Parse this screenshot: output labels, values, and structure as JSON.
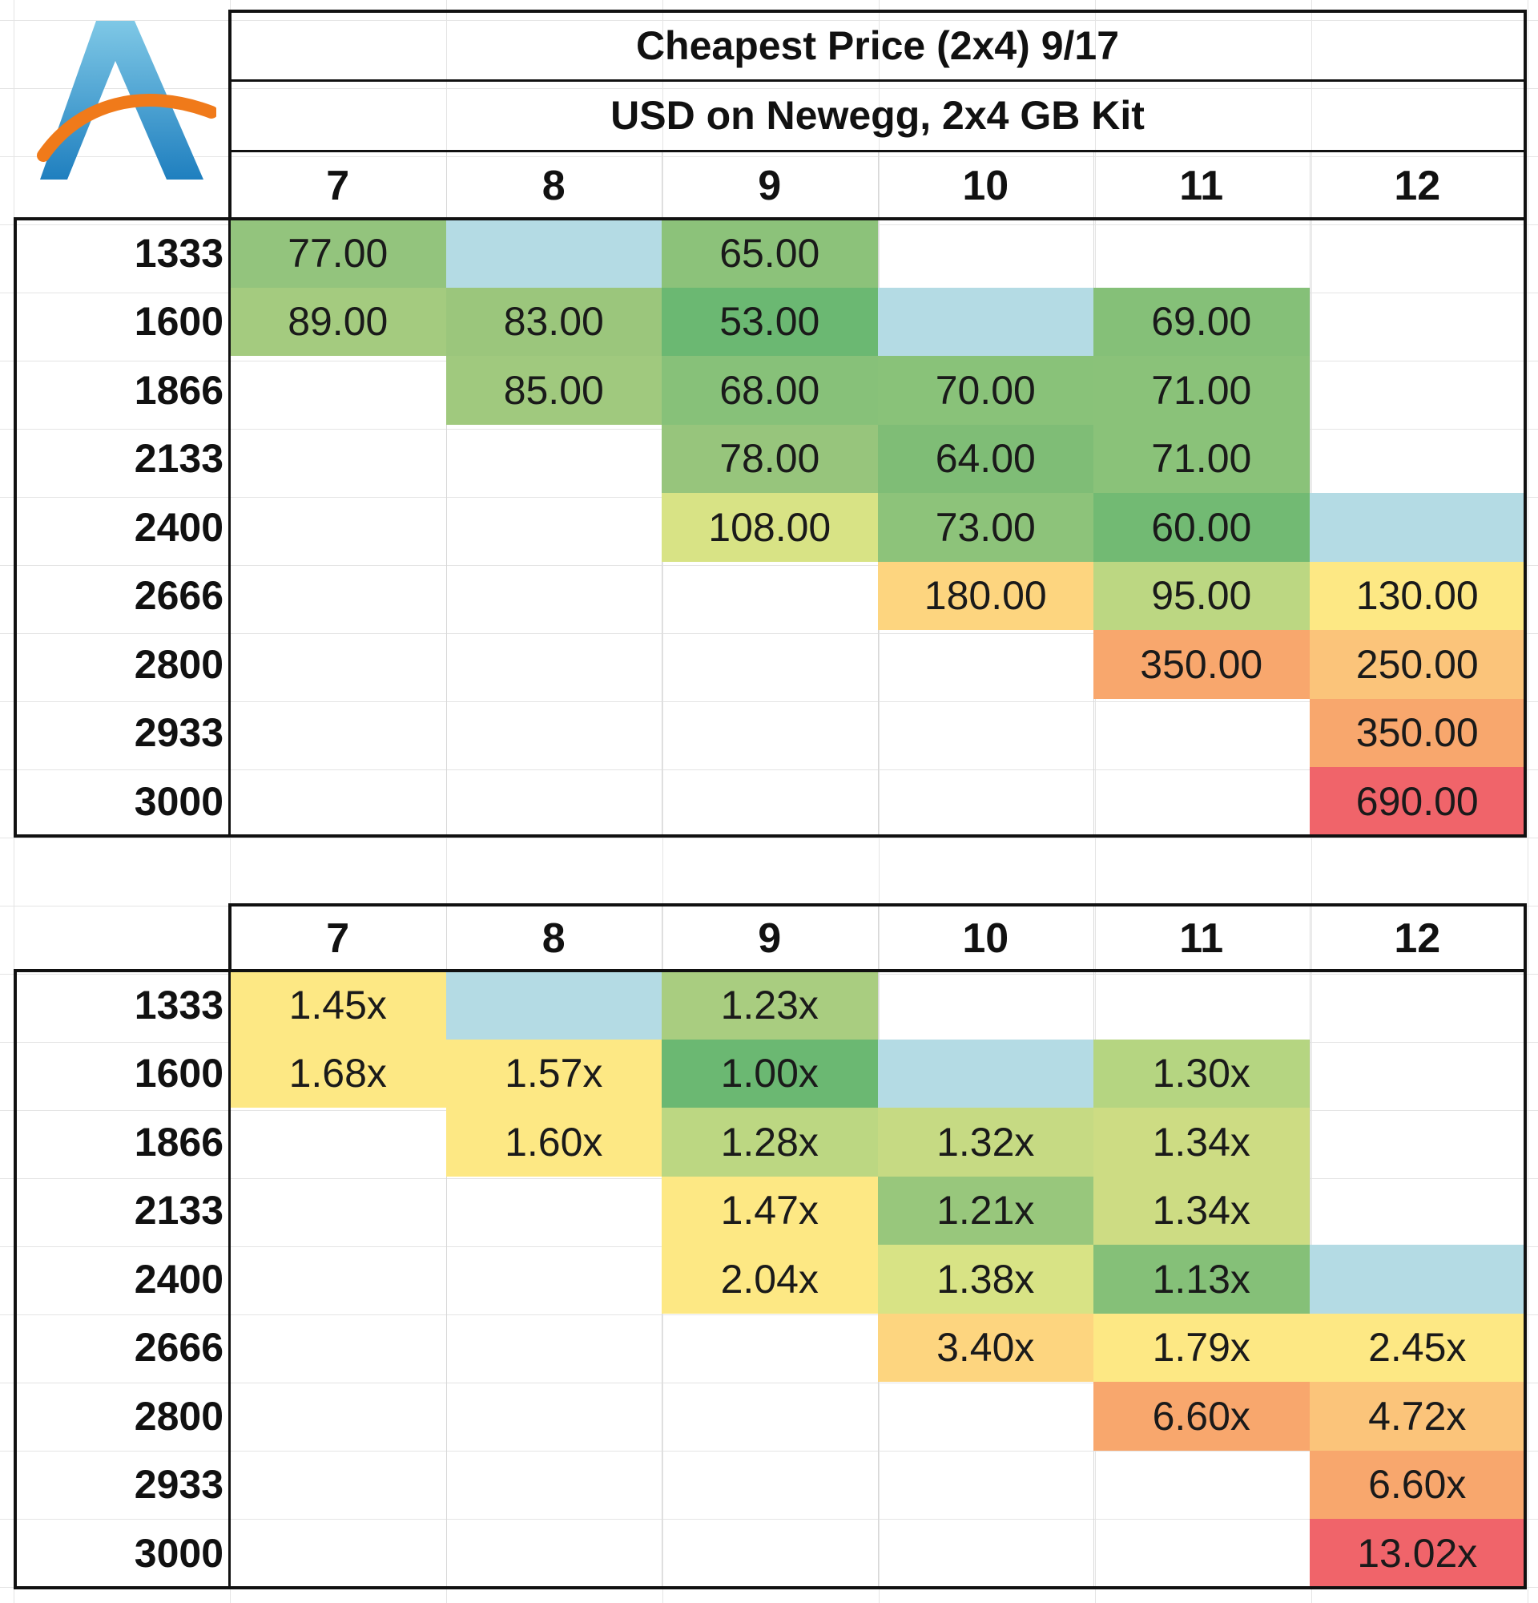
{
  "chart_data": [
    {
      "type": "table",
      "title": "Cheapest Price (2x4) 9/17",
      "subtitle": "USD on Newegg, 2x4 GB Kit",
      "columns": [
        "7",
        "8",
        "9",
        "10",
        "11",
        "12"
      ],
      "rows": [
        "1333",
        "1600",
        "1866",
        "2133",
        "2400",
        "2666",
        "2800",
        "2933",
        "3000"
      ],
      "cells": [
        [
          "77.00",
          "",
          "65.00",
          "",
          "",
          ""
        ],
        [
          "89.00",
          "83.00",
          "53.00",
          "",
          "69.00",
          ""
        ],
        [
          "",
          "85.00",
          "68.00",
          "70.00",
          "71.00",
          ""
        ],
        [
          "",
          "",
          "78.00",
          "64.00",
          "71.00",
          ""
        ],
        [
          "",
          "",
          "108.00",
          "73.00",
          "60.00",
          ""
        ],
        [
          "",
          "",
          "",
          "180.00",
          "95.00",
          "130.00"
        ],
        [
          "",
          "",
          "",
          "",
          "350.00",
          "250.00"
        ],
        [
          "",
          "",
          "",
          "",
          "",
          "350.00"
        ],
        [
          "",
          "",
          "",
          "",
          "",
          "690.00"
        ]
      ],
      "colors": [
        [
          "#93c47d",
          "#b4dbe4",
          "#8cc27a",
          null,
          null,
          null
        ],
        [
          "#a4cb7f",
          "#9bc67c",
          "#6bb872",
          "#b4dbe4",
          "#85c078",
          null
        ],
        [
          null,
          "#a0c97e",
          "#87c179",
          "#89c279",
          "#8ac279",
          null
        ],
        [
          null,
          null,
          "#97c57c",
          "#7fbd76",
          "#8ac279",
          null
        ],
        [
          null,
          null,
          "#d8e385",
          "#8dc37a",
          "#72ba73",
          "#b4dbe4"
        ],
        [
          null,
          null,
          null,
          "#fdd57f",
          "#bcd782",
          "#fde884"
        ],
        [
          null,
          null,
          null,
          null,
          "#f8a76d",
          "#fbc47a"
        ],
        [
          null,
          null,
          null,
          null,
          null,
          "#f8a76d"
        ],
        [
          null,
          null,
          null,
          null,
          null,
          "#f0646a"
        ]
      ]
    },
    {
      "type": "table",
      "columns": [
        "7",
        "8",
        "9",
        "10",
        "11",
        "12"
      ],
      "rows": [
        "1333",
        "1600",
        "1866",
        "2133",
        "2400",
        "2666",
        "2800",
        "2933",
        "3000"
      ],
      "cells": [
        [
          "1.45x",
          "",
          "1.23x",
          "",
          "",
          ""
        ],
        [
          "1.68x",
          "1.57x",
          "1.00x",
          "",
          "1.30x",
          ""
        ],
        [
          "",
          "1.60x",
          "1.28x",
          "1.32x",
          "1.34x",
          ""
        ],
        [
          "",
          "",
          "1.47x",
          "1.21x",
          "1.34x",
          ""
        ],
        [
          "",
          "",
          "2.04x",
          "1.38x",
          "1.13x",
          ""
        ],
        [
          "",
          "",
          "",
          "3.40x",
          "1.79x",
          "2.45x"
        ],
        [
          "",
          "",
          "",
          "",
          "6.60x",
          "4.72x"
        ],
        [
          "",
          "",
          "",
          "",
          "",
          "6.60x"
        ],
        [
          "",
          "",
          "",
          "",
          "",
          "13.02x"
        ]
      ],
      "colors": [
        [
          "#fde884",
          "#b4dbe4",
          "#a9cd80",
          null,
          null,
          null
        ],
        [
          "#fde884",
          "#fde884",
          "#6bb872",
          "#b4dbe4",
          "#b5d581",
          null
        ],
        [
          null,
          "#fde884",
          "#bcd782",
          "#c6da83",
          "#cddc83",
          null
        ],
        [
          null,
          null,
          "#fde884",
          "#98c77c",
          "#cddc83",
          null
        ],
        [
          null,
          null,
          "#fde884",
          "#d8e385",
          "#85c078",
          "#b4dbe4"
        ],
        [
          null,
          null,
          null,
          "#fdd57f",
          "#fde884",
          "#fde884"
        ],
        [
          null,
          null,
          null,
          null,
          "#f8a76d",
          "#fbc47a"
        ],
        [
          null,
          null,
          null,
          null,
          null,
          "#f8a76d"
        ],
        [
          null,
          null,
          null,
          null,
          null,
          "#f0646a"
        ]
      ]
    }
  ]
}
